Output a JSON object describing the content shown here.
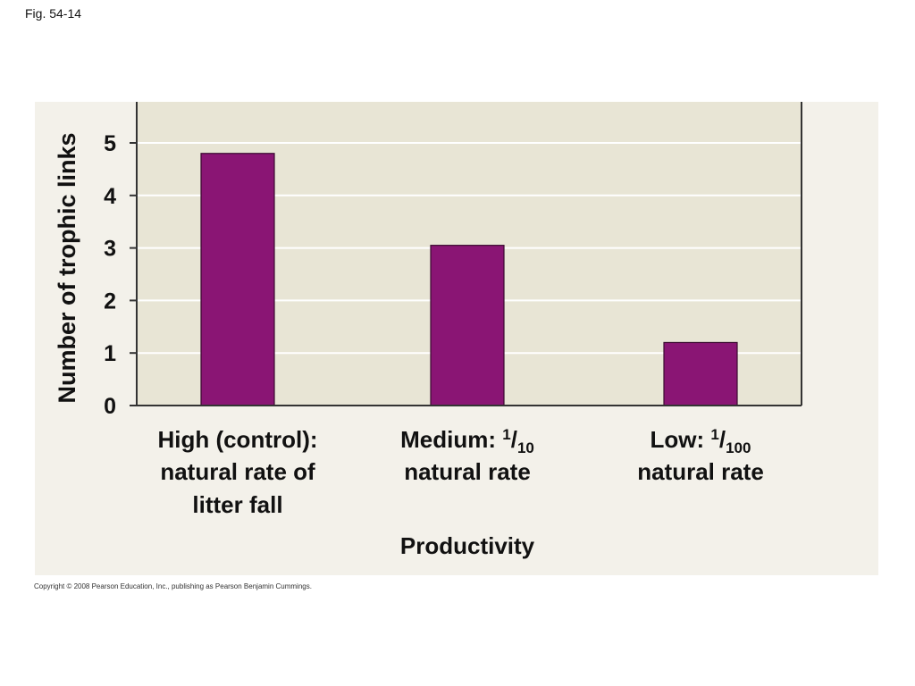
{
  "figure": {
    "label": "Fig. 54-14",
    "copyright": "Copyright © 2008 Pearson Education, Inc., publishing as Pearson Benjamin Cummings."
  },
  "colors": {
    "bar": "#8a1574",
    "plot_background": "#e8e5d5",
    "panel_background": "#f3f1ea",
    "gridline": "#ffffff"
  },
  "chart_data": {
    "type": "bar",
    "title": "",
    "xlabel": "Productivity",
    "ylabel": "Number of trophic links",
    "ylim": [
      0,
      5.8
    ],
    "yticks": [
      0,
      1,
      2,
      3,
      4,
      5
    ],
    "grid": true,
    "categories": [
      {
        "lines": [
          "High (control):",
          "natural rate of",
          "litter fall"
        ]
      },
      {
        "lines": [
          {
            "text": "Medium: ",
            "sup": "1",
            "sep": "/",
            "sub": "10"
          },
          "natural rate"
        ]
      },
      {
        "lines": [
          {
            "text": "Low: ",
            "sup": "1",
            "sep": "/",
            "sub": "100"
          },
          "natural rate"
        ]
      }
    ],
    "values": [
      4.8,
      3.05,
      1.2
    ]
  }
}
